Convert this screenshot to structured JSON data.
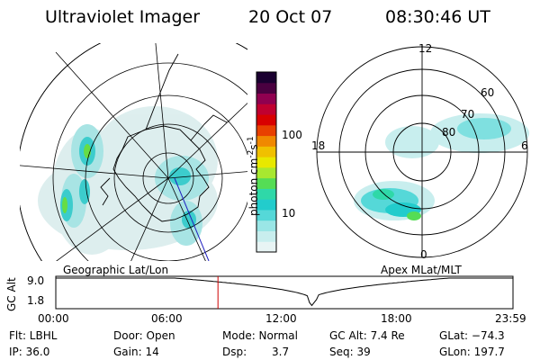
{
  "header": {
    "instrument": "Ultraviolet Imager",
    "date": "20 Oct 07",
    "time": "08:30:46 UT"
  },
  "left_panel": {
    "caption": "Geographic Lat/Lon"
  },
  "right_panel": {
    "caption": "Apex MLat/MLT",
    "mlt_labels": [
      "12",
      "18",
      "6",
      "0"
    ],
    "mlat_labels": [
      "60",
      "70",
      "80"
    ]
  },
  "colorbar": {
    "unit_label": "photon cm",
    "unit_exp1": "-2",
    "unit_s": "s",
    "unit_exp2": "-1",
    "tick_labels": [
      "100",
      "10"
    ],
    "scale": "log",
    "colors": [
      "#e8f4f4",
      "#c8eeee",
      "#9ae6e6",
      "#55d8d8",
      "#22cccc",
      "#2fd8a8",
      "#55dd55",
      "#a8e830",
      "#e8e800",
      "#f0c000",
      "#f08800",
      "#e84000",
      "#d80000",
      "#c00030",
      "#900050",
      "#4a0040",
      "#1a0030"
    ]
  },
  "timeline": {
    "y_axis_label": "GC Alt",
    "y_ticks": [
      "9.0",
      "1.8"
    ],
    "x_ticks": [
      "00:00",
      "06:00",
      "12:00",
      "18:00",
      "23:59"
    ],
    "current_time_marker": "08:30:46"
  },
  "info": {
    "flt": "Flt: LBHL",
    "ip": "IP: 36.0",
    "door": "Door: Open",
    "gain": "Gain: 14",
    "mode": "Mode: Normal",
    "dsp_label": "Dsp:",
    "dsp_value": "3.7",
    "gc_alt": "GC Alt: 7.4 Re",
    "seq": "Seq: 39",
    "glat": "GLat: −74.3",
    "glon": "GLon: 197.7"
  }
}
